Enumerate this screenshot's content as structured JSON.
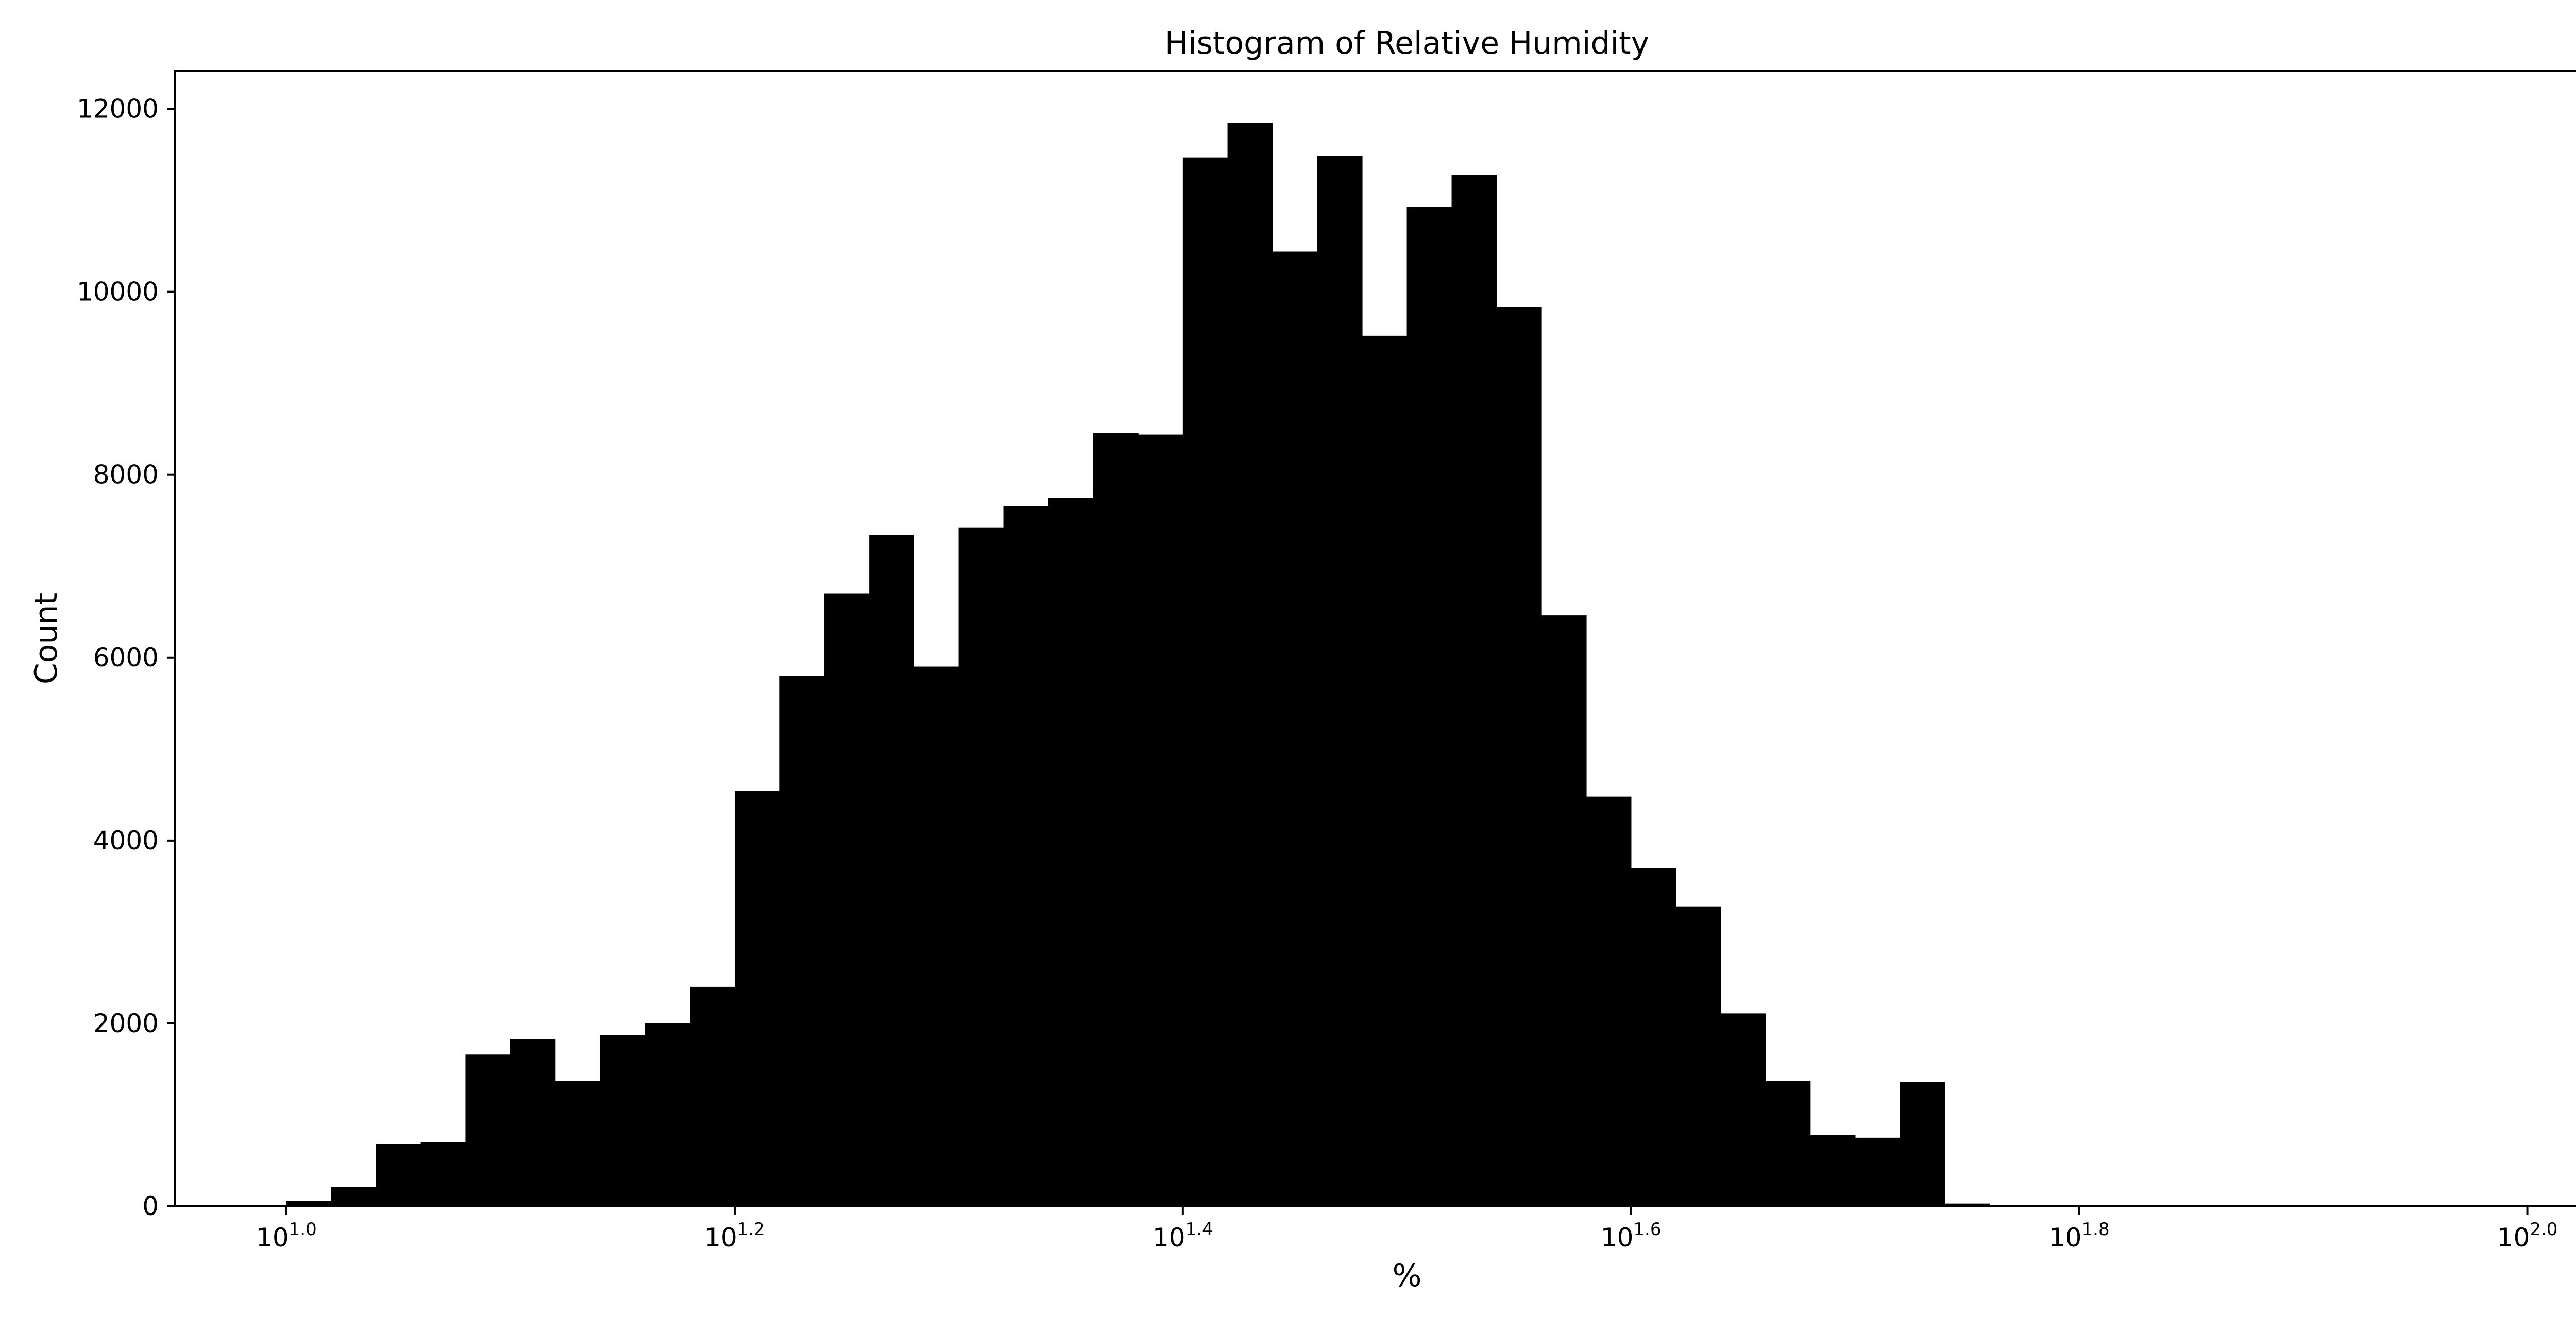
{
  "chart_data": {
    "type": "bar",
    "title": "Histogram of Relative Humidity",
    "xlabel": "%",
    "ylabel": "Count",
    "x_scale": "log10",
    "xlim": [
      8.92,
      112.2
    ],
    "ylim": [
      0,
      12420
    ],
    "grid": false,
    "legend": {
      "placement": "top-right",
      "entries": []
    },
    "bar_color": "#000000",
    "x_ticks": [
      {
        "value": 10.0,
        "base": "10",
        "exponent": "1.0"
      },
      {
        "value": 15.85,
        "base": "10",
        "exponent": "1.2"
      },
      {
        "value": 25.12,
        "base": "10",
        "exponent": "1.4"
      },
      {
        "value": 39.81,
        "base": "10",
        "exponent": "1.6"
      },
      {
        "value": 63.1,
        "base": "10",
        "exponent": "1.8"
      },
      {
        "value": 100.0,
        "base": "10",
        "exponent": "2.0"
      }
    ],
    "y_ticks": [
      {
        "value": 0,
        "label": "0"
      },
      {
        "value": 2000,
        "label": "2000"
      },
      {
        "value": 4000,
        "label": "4000"
      },
      {
        "value": 6000,
        "label": "6000"
      },
      {
        "value": 8000,
        "label": "8000"
      },
      {
        "value": 10000,
        "label": "10000"
      },
      {
        "value": 12000,
        "label": "12000"
      }
    ],
    "bin_edges": [
      10.0,
      10.47,
      10.96,
      11.48,
      12.02,
      12.58,
      13.18,
      13.8,
      14.45,
      15.14,
      15.85,
      16.6,
      17.38,
      18.2,
      19.05,
      19.95,
      20.89,
      21.88,
      22.91,
      23.99,
      25.12,
      26.3,
      27.54,
      28.84,
      30.2,
      31.62,
      33.11,
      34.67,
      36.31,
      38.02,
      39.81,
      41.69,
      43.65,
      45.71,
      47.86,
      50.12,
      52.48,
      54.95,
      57.54,
      60.26,
      63.1
    ],
    "counts": [
      60,
      210,
      680,
      700,
      1660,
      1830,
      1370,
      1870,
      2000,
      2400,
      4540,
      5800,
      6700,
      7340,
      5900,
      7420,
      7660,
      7750,
      8460,
      8440,
      11470,
      11850,
      10440,
      11490,
      9520,
      10930,
      11280,
      9830,
      6460,
      4480,
      3700,
      3280,
      2110,
      1370,
      780,
      750,
      1360,
      30,
      10,
      0
    ]
  }
}
